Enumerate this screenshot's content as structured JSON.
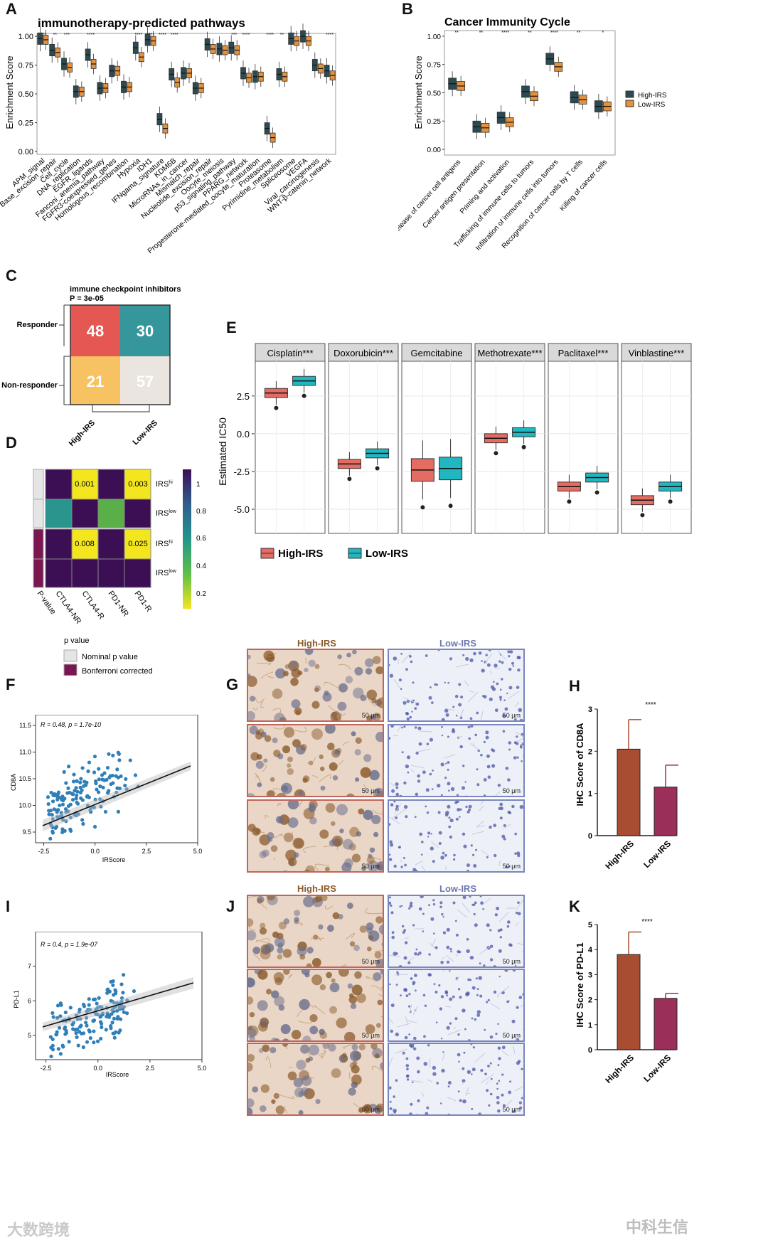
{
  "panels": {
    "A": {
      "letter": "A",
      "title": "immunotherapy-predicted pathways",
      "ylabel": "Enrichment Score",
      "yticks": [
        "1.00",
        "0.75",
        "0.50",
        "0.25",
        "0.00"
      ],
      "categories": [
        "APM_signal",
        "Base_excision_repair",
        "Cell_cycle",
        "DNA_replication",
        "EGFR_ligands",
        "Fanconi_anemia_pathway",
        "FGFR3-coexpressed_genes",
        "Homologous_recombination",
        "Hypoxia",
        "IDH1",
        "IFNgama_signature",
        "KDM6B",
        "MicroRNAs_in_cancer",
        "Mismatch_repair",
        "Nucleotide_excision_repair",
        "Oocyte_meiosis",
        "p53_signaling_pathway",
        "PPARG_network",
        "Progesterone-mediated_oocyte_maturation",
        "Proteasome",
        "Pyrimidine_metabolism",
        "Spliceosome",
        "VEGFA",
        "Viral_carcinogenesis",
        "WNT-β-catenin_network"
      ],
      "sig": [
        "****",
        "**",
        "***",
        "",
        "****",
        "",
        "",
        "",
        "****",
        "****",
        "****",
        "****",
        "",
        "",
        "",
        "",
        "***",
        "****",
        "",
        "****",
        "**",
        "****",
        "****",
        "",
        "****"
      ]
    },
    "B": {
      "letter": "B",
      "title": "Cancer Immunity Cycle",
      "ylabel": "Enrichment Score",
      "yticks": [
        "1.00",
        "0.75",
        "0.50",
        "0.25",
        "0.00"
      ],
      "categories": [
        "Release of cancer cell antigens",
        "Cancer antigen presentation",
        "Priming and activation",
        "Trafficking of immune cells to tumors",
        "Infiltration of immune cells into tumors",
        "Recognition of cancer cells by T cells",
        "Killing of cancer cells"
      ],
      "sig": [
        "**",
        "**",
        "****",
        "**",
        "****",
        "**",
        "*"
      ],
      "legend": [
        "High-IRS",
        "Low-IRS"
      ]
    },
    "C": {
      "letter": "C",
      "title": "immune checkpoint inhibitors",
      "pvalue": "P = 3e-05",
      "rows": [
        "Responder",
        "Non-responder"
      ],
      "cols": [
        "High-IRS",
        "Low-IRS"
      ],
      "cells": [
        "48",
        "30",
        "21",
        "57"
      ]
    },
    "D": {
      "letter": "D",
      "cell_values": [
        "0.001",
        "0.003",
        "0.008",
        "0.025"
      ],
      "row_labels": [
        "IRS",
        "IRS",
        "IRS",
        "IRS"
      ],
      "row_sups": [
        "hi",
        "low",
        "hi",
        "low"
      ],
      "col_labels": [
        "P-value",
        "CTLA4-NR",
        "CTLA4-R",
        "PD1-NR",
        "PD1-R"
      ],
      "colorbar": [
        "1",
        "0.8",
        "0.6",
        "0.4",
        "0.2"
      ],
      "legend_title": "p value",
      "legend_items": [
        "Nominal p value",
        "Bonferroni corrected"
      ]
    },
    "E": {
      "letter": "E",
      "ylabel": "Estimated IC50",
      "yticks": [
        "2.5",
        "0.0",
        "-2.5",
        "-5.0"
      ],
      "facets": [
        "Cisplatin***",
        "Doxorubicin***",
        "Gemcitabine",
        "Methotrexate***",
        "Paclitaxel***",
        "Vinblastine***"
      ],
      "legend": [
        "High-IRS",
        "Low-IRS"
      ]
    },
    "F": {
      "letter": "F",
      "annotation": "R = 0.48, p = 1.7e-10",
      "xlabel": "IRScore",
      "ylabel": "CD8A",
      "xticks": [
        "-2.5",
        "0.0",
        "2.5",
        "5.0"
      ],
      "yticks": [
        "11.5",
        "11.0",
        "10.5",
        "10.0",
        "9.5"
      ]
    },
    "G": {
      "letter": "G",
      "cols": [
        "High-IRS",
        "Low-IRS"
      ],
      "scale": "50 μm"
    },
    "H": {
      "letter": "H",
      "ylabel": "IHC Score of CD8A",
      "sig": "****",
      "yticks": [
        "3",
        "2",
        "1",
        "0"
      ],
      "categories": [
        "High-IRS",
        "Low-IRS"
      ]
    },
    "I": {
      "letter": "I",
      "annotation": "R = 0.4, p = 1.9e-07",
      "xlabel": "IRScore",
      "ylabel": "PD-L1",
      "xticks": [
        "-2.5",
        "0.0",
        "2.5",
        "5.0"
      ],
      "yticks": [
        "7",
        "6",
        "5"
      ]
    },
    "J": {
      "letter": "J",
      "cols": [
        "High-IRS",
        "Low-IRS"
      ],
      "scale": "50 μm"
    },
    "K": {
      "letter": "K",
      "ylabel": "IHC Score of PD-L1",
      "sig": "****",
      "yticks": [
        "5",
        "4",
        "3",
        "2",
        "1",
        "0"
      ],
      "categories": [
        "High-IRS",
        "Low-IRS"
      ]
    }
  },
  "chart_data": [
    {
      "panel": "A",
      "type": "box",
      "series": [
        {
          "name": "High-IRS",
          "medians": [
            0.98,
            0.88,
            0.76,
            0.52,
            0.84,
            0.55,
            0.7,
            0.56,
            0.9,
            0.97,
            0.28,
            0.67,
            0.68,
            0.55,
            0.93,
            0.89,
            0.9,
            0.68,
            0.65,
            0.2,
            0.67,
            0.98,
            1.0,
            0.75,
            0.7
          ]
        },
        {
          "name": "Low-IRS",
          "medians": [
            0.97,
            0.86,
            0.73,
            0.52,
            0.76,
            0.55,
            0.7,
            0.56,
            0.82,
            0.96,
            0.2,
            0.6,
            0.68,
            0.55,
            0.89,
            0.88,
            0.88,
            0.64,
            0.65,
            0.12,
            0.65,
            0.96,
            0.96,
            0.72,
            0.66
          ]
        }
      ],
      "ylim": [
        0,
        1.05
      ]
    },
    {
      "panel": "B",
      "type": "box",
      "series": [
        {
          "name": "High-IRS",
          "medians": [
            0.58,
            0.2,
            0.28,
            0.51,
            0.8,
            0.46,
            0.38
          ]
        },
        {
          "name": "Low-IRS",
          "medians": [
            0.56,
            0.19,
            0.24,
            0.47,
            0.73,
            0.44,
            0.38
          ]
        }
      ],
      "ylim": [
        0,
        1.05
      ]
    },
    {
      "panel": "E",
      "type": "box",
      "series": [
        {
          "name": "High-IRS",
          "medians": [
            2.7,
            -2.0,
            -2.4,
            -0.3,
            -3.5,
            -4.4
          ]
        },
        {
          "name": "Low-IRS",
          "medians": [
            3.5,
            -1.3,
            -2.3,
            0.1,
            -2.9,
            -3.5
          ]
        }
      ],
      "ylim": [
        -6.5,
        4.8
      ]
    },
    {
      "panel": "H",
      "type": "bar",
      "categories": [
        "High-IRS",
        "Low-IRS"
      ],
      "values": [
        2.05,
        1.15
      ],
      "errors": [
        0.7,
        0.52
      ],
      "ylim": [
        0,
        3
      ]
    },
    {
      "panel": "K",
      "type": "bar",
      "categories": [
        "High-IRS",
        "Low-IRS"
      ],
      "values": [
        3.8,
        2.05
      ],
      "errors": [
        0.9,
        0.2
      ],
      "ylim": [
        0,
        5
      ]
    }
  ],
  "watermarks": {
    "left": "大数跨境",
    "right": "中科生信"
  }
}
